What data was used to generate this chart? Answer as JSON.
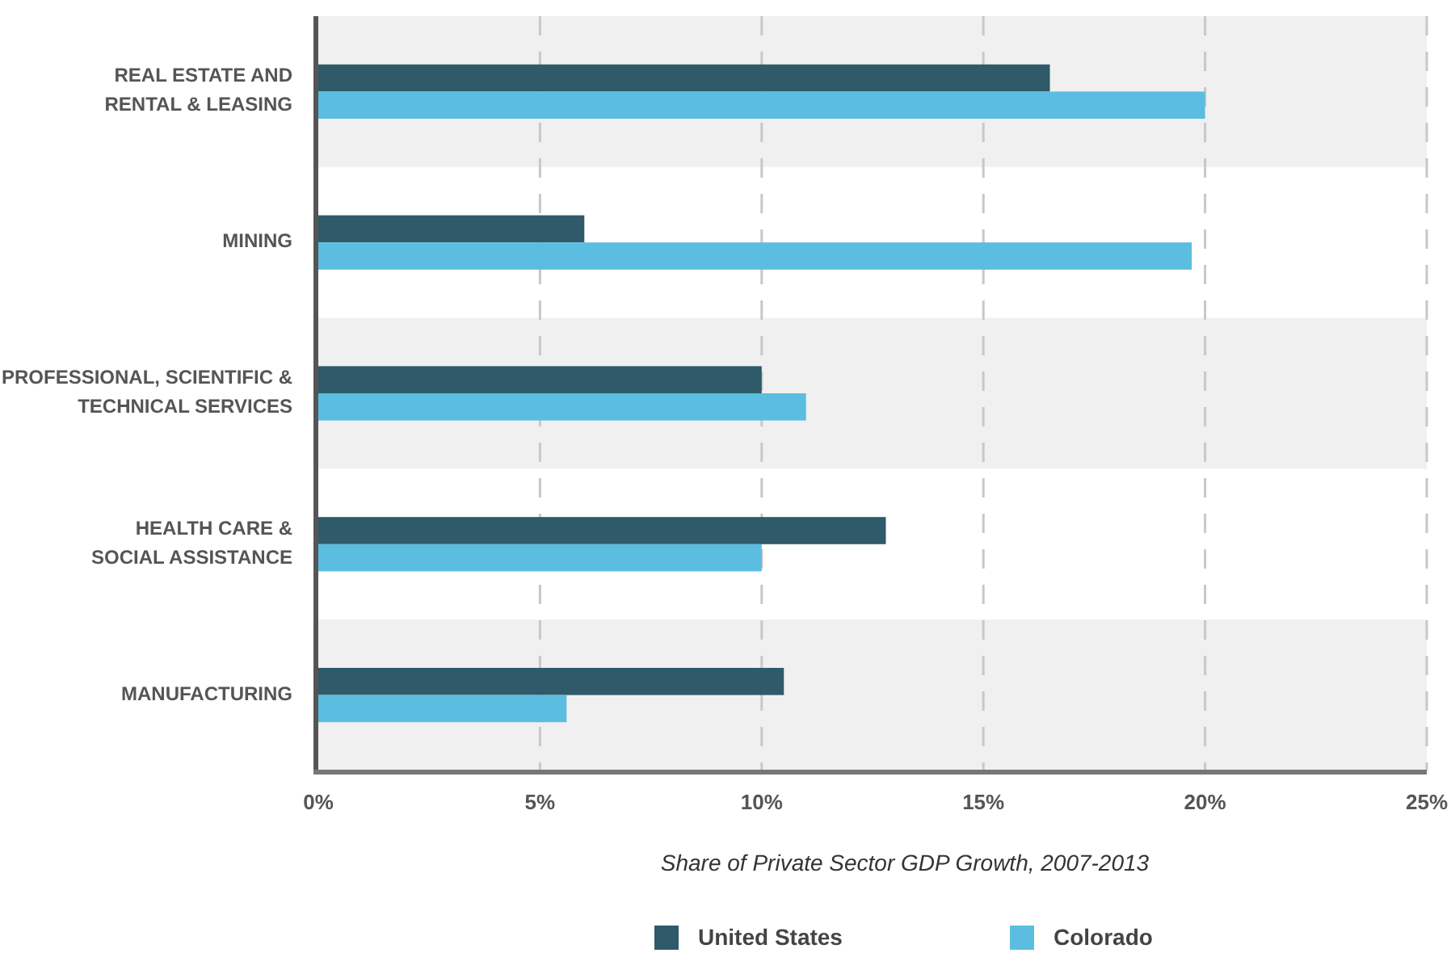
{
  "chart_data": {
    "type": "bar",
    "orientation": "horizontal",
    "categories": [
      "REAL ESTATE AND RENTAL & LEASING",
      "MINING",
      "PROFESSIONAL, SCIENTIFIC & TECHNICAL SERVICES",
      "HEALTH CARE & SOCIAL ASSISTANCE",
      "MANUFACTURING"
    ],
    "series": [
      {
        "name": "United States",
        "color": "#2e5a6a",
        "values": [
          16.5,
          6.0,
          10.0,
          12.8,
          10.5
        ]
      },
      {
        "name": "Colorado",
        "color": "#5bbde0",
        "values": [
          20.0,
          19.7,
          11.0,
          10.0,
          5.6
        ]
      }
    ],
    "xlabel": "Share of Private Sector GDP Growth, 2007-2013",
    "xlim": [
      0,
      25
    ],
    "xticks": [
      {
        "value": 0,
        "label": "0%"
      },
      {
        "value": 5,
        "label": "5%"
      },
      {
        "value": 10,
        "label": "10%"
      },
      {
        "value": 15,
        "label": "15%"
      },
      {
        "value": 20,
        "label": "20%"
      },
      {
        "value": 25,
        "label": "25%"
      }
    ],
    "grid": "x",
    "legend": "bottom"
  }
}
